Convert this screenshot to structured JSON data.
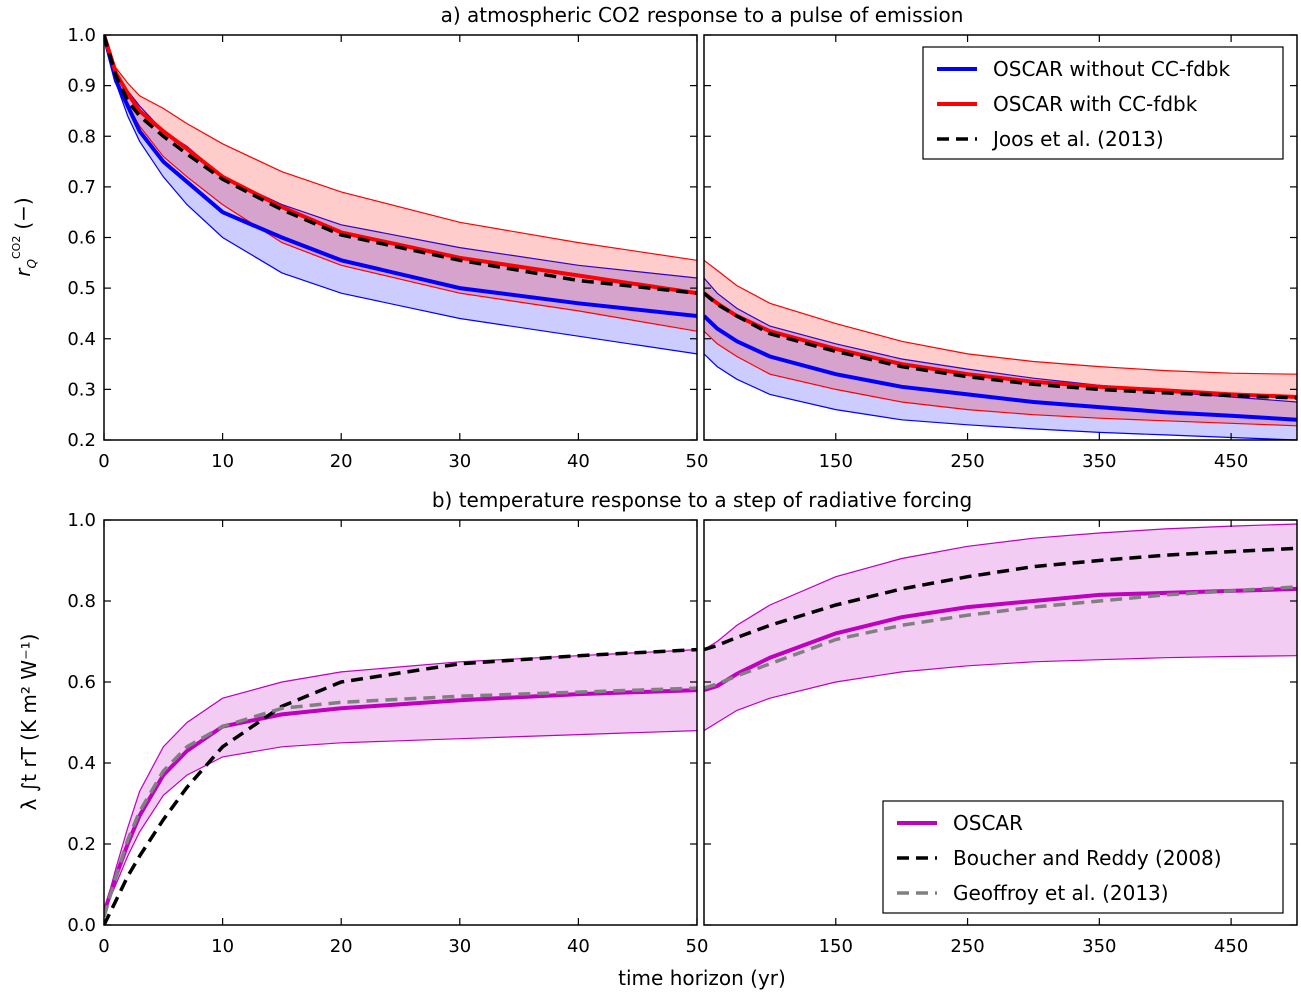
{
  "figure": {
    "xlabel": "time horizon (yr)",
    "ylabel_a": "r",
    "ylabel_a_sub": "Q",
    "ylabel_a_sup": "CO2",
    "ylabel_a_unit": "(−)",
    "ylabel_b": "λ ∫t rT (K m² W⁻¹)"
  },
  "chart_data": [
    {
      "id": "a",
      "type": "line",
      "title": "a) atmospheric CO2 response to a pulse of emission",
      "ylim": [
        0.2,
        1.0
      ],
      "yticks": [
        0.2,
        0.3,
        0.4,
        0.5,
        0.6,
        0.7,
        0.8,
        0.9,
        1.0
      ],
      "ytick_labels": [
        "0.2",
        "0.3",
        "0.4",
        "0.5",
        "0.6",
        "0.7",
        "0.8",
        "0.9",
        "1.0"
      ],
      "left_xlim": [
        0,
        50
      ],
      "left_xticks": [
        0,
        10,
        20,
        30,
        40,
        50
      ],
      "left_xtick_labels": [
        "0",
        "10",
        "20",
        "30",
        "40",
        "50"
      ],
      "right_xlim": [
        50,
        500
      ],
      "right_xticks": [
        150,
        250,
        350,
        450
      ],
      "right_xtick_labels": [
        "150",
        "250",
        "350",
        "450"
      ],
      "grid": false,
      "legend_position": "top-right",
      "x": [
        0,
        1,
        2,
        3,
        5,
        7,
        10,
        15,
        20,
        30,
        40,
        50,
        60,
        75,
        100,
        150,
        200,
        250,
        300,
        350,
        400,
        450,
        500
      ],
      "series": [
        {
          "name": "OSCAR without CC-fdbk",
          "color": "#0000ff",
          "style": "solid",
          "values": [
            1.0,
            0.91,
            0.86,
            0.81,
            0.75,
            0.71,
            0.65,
            0.6,
            0.555,
            0.5,
            0.47,
            0.445,
            0.42,
            0.395,
            0.365,
            0.33,
            0.305,
            0.29,
            0.275,
            0.265,
            0.255,
            0.248,
            0.24
          ],
          "band_low": [
            1.0,
            0.905,
            0.84,
            0.79,
            0.72,
            0.665,
            0.6,
            0.53,
            0.49,
            0.44,
            0.405,
            0.37,
            0.345,
            0.32,
            0.29,
            0.26,
            0.24,
            0.23,
            0.222,
            0.215,
            0.21,
            0.205,
            0.2
          ],
          "band_high": [
            1.0,
            0.925,
            0.89,
            0.86,
            0.81,
            0.78,
            0.72,
            0.665,
            0.625,
            0.58,
            0.545,
            0.52,
            0.49,
            0.46,
            0.425,
            0.39,
            0.36,
            0.34,
            0.322,
            0.308,
            0.295,
            0.285,
            0.275
          ]
        },
        {
          "name": "OSCAR with CC-fdbk",
          "color": "#ff0000",
          "style": "solid",
          "values": [
            1.0,
            0.925,
            0.885,
            0.85,
            0.81,
            0.775,
            0.72,
            0.66,
            0.61,
            0.56,
            0.525,
            0.49,
            0.47,
            0.445,
            0.415,
            0.38,
            0.35,
            0.33,
            0.315,
            0.305,
            0.298,
            0.29,
            0.285
          ],
          "band_low": [
            1.0,
            0.91,
            0.86,
            0.82,
            0.76,
            0.72,
            0.665,
            0.59,
            0.545,
            0.49,
            0.455,
            0.415,
            0.39,
            0.365,
            0.33,
            0.3,
            0.275,
            0.26,
            0.25,
            0.243,
            0.238,
            0.233,
            0.228
          ],
          "band_high": [
            1.0,
            0.935,
            0.905,
            0.88,
            0.855,
            0.825,
            0.785,
            0.73,
            0.69,
            0.63,
            0.59,
            0.555,
            0.535,
            0.505,
            0.47,
            0.43,
            0.395,
            0.37,
            0.355,
            0.345,
            0.337,
            0.332,
            0.33
          ]
        },
        {
          "name": "Joos et al. (2013)",
          "color": "#000000",
          "style": "dashed",
          "values": [
            1.0,
            0.92,
            0.87,
            0.84,
            0.8,
            0.765,
            0.715,
            0.655,
            0.605,
            0.555,
            0.515,
            0.49,
            0.468,
            0.445,
            0.41,
            0.375,
            0.345,
            0.325,
            0.31,
            0.3,
            0.293,
            0.288,
            0.283
          ]
        }
      ]
    },
    {
      "id": "b",
      "type": "line",
      "title": "b) temperature response to a step of radiative forcing",
      "ylim": [
        0.0,
        1.0
      ],
      "yticks": [
        0.0,
        0.2,
        0.4,
        0.6,
        0.8,
        1.0
      ],
      "ytick_labels": [
        "0.0",
        "0.2",
        "0.4",
        "0.6",
        "0.8",
        "1.0"
      ],
      "left_xlim": [
        0,
        50
      ],
      "left_xticks": [
        0,
        10,
        20,
        30,
        40,
        50
      ],
      "left_xtick_labels": [
        "0",
        "10",
        "20",
        "30",
        "40",
        "50"
      ],
      "right_xlim": [
        50,
        500
      ],
      "right_xticks": [
        150,
        250,
        350,
        450
      ],
      "right_xtick_labels": [
        "150",
        "250",
        "350",
        "450"
      ],
      "grid": false,
      "legend_position": "bottom-right",
      "x": [
        0,
        1,
        2,
        3,
        5,
        7,
        10,
        15,
        20,
        30,
        40,
        50,
        60,
        75,
        100,
        150,
        200,
        250,
        300,
        350,
        400,
        450,
        500
      ],
      "series": [
        {
          "name": "OSCAR",
          "color": "#bf00bf",
          "style": "solid",
          "values": [
            0.03,
            0.12,
            0.2,
            0.27,
            0.37,
            0.43,
            0.49,
            0.52,
            0.535,
            0.555,
            0.57,
            0.58,
            0.59,
            0.62,
            0.66,
            0.72,
            0.76,
            0.785,
            0.8,
            0.815,
            0.82,
            0.825,
            0.83
          ],
          "band_low": [
            0.03,
            0.1,
            0.17,
            0.23,
            0.32,
            0.37,
            0.415,
            0.44,
            0.45,
            0.46,
            0.47,
            0.48,
            0.5,
            0.53,
            0.56,
            0.6,
            0.625,
            0.64,
            0.65,
            0.655,
            0.66,
            0.663,
            0.665
          ],
          "band_high": [
            0.03,
            0.14,
            0.24,
            0.33,
            0.44,
            0.5,
            0.56,
            0.6,
            0.625,
            0.65,
            0.665,
            0.68,
            0.7,
            0.74,
            0.79,
            0.86,
            0.905,
            0.935,
            0.955,
            0.968,
            0.978,
            0.985,
            0.99
          ]
        },
        {
          "name": "Boucher and Reddy (2008)",
          "color": "#000000",
          "style": "dashed",
          "values": [
            0.0,
            0.06,
            0.12,
            0.17,
            0.26,
            0.34,
            0.44,
            0.54,
            0.6,
            0.645,
            0.665,
            0.68,
            0.69,
            0.71,
            0.74,
            0.79,
            0.83,
            0.86,
            0.885,
            0.9,
            0.913,
            0.922,
            0.93
          ]
        },
        {
          "name": "Geoffroy et al. (2013)",
          "color": "#808080",
          "style": "dashed",
          "values": [
            0.02,
            0.12,
            0.21,
            0.28,
            0.38,
            0.44,
            0.49,
            0.535,
            0.55,
            0.565,
            0.575,
            0.585,
            0.595,
            0.615,
            0.645,
            0.705,
            0.74,
            0.765,
            0.785,
            0.8,
            0.815,
            0.825,
            0.835
          ]
        }
      ]
    }
  ]
}
